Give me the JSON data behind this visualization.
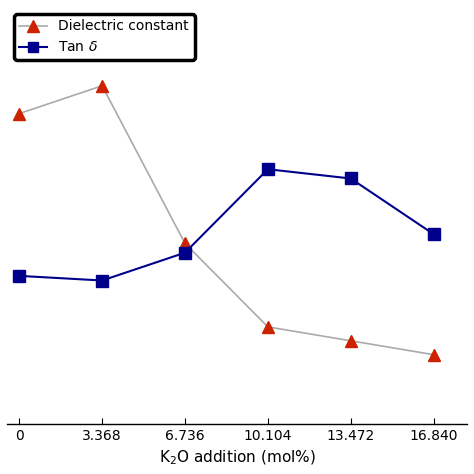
{
  "x": [
    0,
    3.368,
    6.736,
    10.104,
    13.472,
    16.84
  ],
  "dielectric_constant": [
    0.82,
    0.88,
    0.54,
    0.36,
    0.33,
    0.3
  ],
  "tan_delta": [
    0.47,
    0.46,
    0.52,
    0.7,
    0.68,
    0.56
  ],
  "dc_color": "#cc2200",
  "td_color": "#00008B",
  "dc_line_color": "#aaaaaa",
  "td_line_color": "#00008B",
  "xlabel": "K$_2$O addition (mol%)",
  "legend_labels": [
    "Dielectric constant",
    "Tan $\\delta$"
  ],
  "xticks": [
    0,
    3.368,
    6.736,
    10.104,
    13.472,
    16.84
  ],
  "xtick_labels": [
    "0",
    "3.368",
    "6.736",
    "10.104",
    "13.472",
    "16.840"
  ],
  "ylim": [
    0.15,
    1.05
  ],
  "xlim": [
    -0.5,
    18.2
  ],
  "figsize": [
    4.74,
    4.74
  ],
  "dpi": 100
}
